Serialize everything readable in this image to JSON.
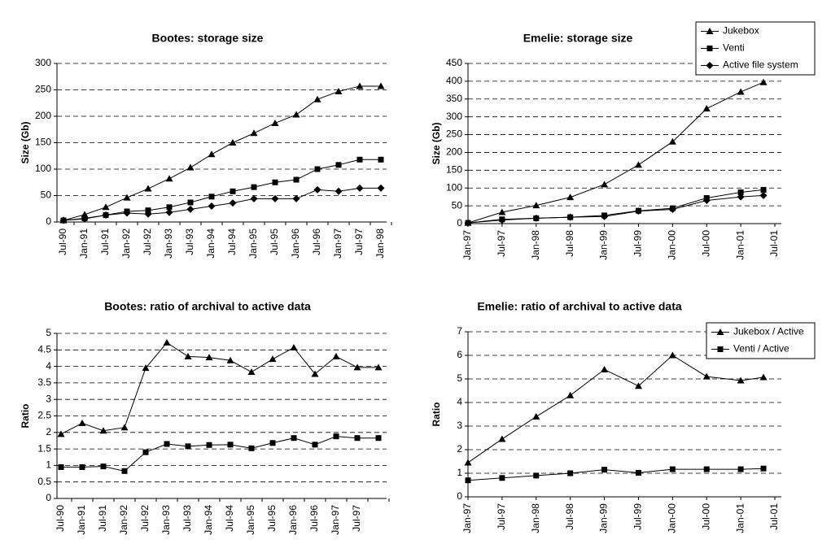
{
  "chart_data": [
    {
      "type": "line",
      "title": "Bootes: storage size",
      "ylabel": "Size (Gb)",
      "categories": [
        "Jul-90",
        "Jan-91",
        "Jul-91",
        "Jan-92",
        "Jul-92",
        "Jan-93",
        "Jul-93",
        "Jan-94",
        "Jul-94",
        "Jan-95",
        "Jul-95",
        "Jan-96",
        "Jul-96",
        "Jan-97",
        "Jul-97",
        "Jan-98"
      ],
      "series": [
        {
          "marker": "triangle",
          "color": "#000000",
          "values": [
            3,
            14,
            28,
            46,
            63,
            82,
            103,
            128,
            150,
            168,
            187,
            203,
            232,
            247,
            257,
            257
          ]
        },
        {
          "marker": "square",
          "color": "#000000",
          "values": [
            3,
            7,
            13,
            20,
            22,
            28,
            37,
            48,
            58,
            66,
            75,
            80,
            100,
            108,
            118,
            118
          ]
        },
        {
          "marker": "diamond",
          "color": "#000000",
          "values": [
            3,
            6,
            13,
            17,
            15,
            18,
            24,
            30,
            36,
            44,
            44,
            44,
            61,
            58,
            64,
            64
          ]
        }
      ],
      "ylim": [
        0,
        300
      ],
      "yticks": [
        0,
        50,
        100,
        150,
        200,
        250,
        300
      ],
      "grid": true
    },
    {
      "type": "line",
      "title": "Emelie: storage size",
      "ylabel": "Size (Gb)",
      "x": [
        0,
        6,
        12,
        18,
        24,
        30,
        36,
        42,
        48,
        52
      ],
      "xlim": [
        0,
        54
      ],
      "xticks": [
        {
          "value": 0,
          "label": "Jan-97"
        },
        {
          "value": 6,
          "label": "Jul-97"
        },
        {
          "value": 12,
          "label": "Jan-98"
        },
        {
          "value": 18,
          "label": "Jul-98"
        },
        {
          "value": 24,
          "label": "Jan-99"
        },
        {
          "value": 30,
          "label": "Jul-99"
        },
        {
          "value": 36,
          "label": "Jan-00"
        },
        {
          "value": 42,
          "label": "Jul-00"
        },
        {
          "value": 48,
          "label": "Jan-01"
        },
        {
          "value": 54,
          "label": "Jul-01"
        }
      ],
      "series": [
        {
          "name": "Jukebox",
          "marker": "triangle",
          "color": "#000000",
          "values": [
            2,
            32,
            51,
            74,
            110,
            165,
            230,
            323,
            370,
            397
          ]
        },
        {
          "name": "Venti",
          "marker": "square",
          "color": "#000000",
          "values": [
            2,
            12,
            15,
            18,
            23,
            36,
            43,
            72,
            88,
            95
          ]
        },
        {
          "name": "Active file system",
          "marker": "diamond",
          "color": "#000000",
          "values": [
            2,
            10,
            15,
            18,
            20,
            35,
            40,
            65,
            75,
            79
          ]
        }
      ],
      "ylim": [
        0,
        450
      ],
      "yticks": [
        0,
        50,
        100,
        150,
        200,
        250,
        300,
        350,
        400,
        450
      ],
      "grid": true,
      "legend": "upper right"
    },
    {
      "type": "line",
      "title": "Bootes: ratio of archival to active data",
      "ylabel": "Ratio",
      "categories": [
        "Jul-90",
        "Jan-91",
        "Jul-91",
        "Jan-92",
        "Jul-92",
        "Jan-93",
        "Jul-93",
        "Jan-94",
        "Jul-94",
        "Jan-95",
        "Jul-95",
        "Jan-96",
        "Jul-96",
        "Jan-97",
        "Jul-97",
        null
      ],
      "series": [
        {
          "marker": "triangle",
          "color": "#000000",
          "values": [
            1.95,
            2.28,
            2.05,
            2.15,
            3.95,
            4.72,
            4.3,
            4.27,
            4.18,
            3.83,
            4.22,
            4.57,
            3.77,
            4.3,
            3.97,
            3.97
          ]
        },
        {
          "marker": "square",
          "color": "#000000",
          "values": [
            0.95,
            0.95,
            0.97,
            0.83,
            1.4,
            1.65,
            1.58,
            1.62,
            1.63,
            1.52,
            1.68,
            1.83,
            1.63,
            1.88,
            1.83,
            1.83
          ]
        }
      ],
      "ylim": [
        0,
        5
      ],
      "yticks": [
        0,
        0.5,
        1,
        1.5,
        2,
        2.5,
        3,
        3.5,
        4,
        4.5,
        5
      ],
      "grid": true
    },
    {
      "type": "line",
      "title": "Emelie: ratio of archival to active data",
      "ylabel": "Ratio",
      "x": [
        0,
        6,
        12,
        18,
        24,
        30,
        36,
        42,
        48,
        52
      ],
      "xlim": [
        0,
        54
      ],
      "xticks": [
        {
          "value": 0,
          "label": "Jan-97"
        },
        {
          "value": 6,
          "label": "Jul-97"
        },
        {
          "value": 12,
          "label": "Jan-98"
        },
        {
          "value": 18,
          "label": "Jul-98"
        },
        {
          "value": 24,
          "label": "Jan-99"
        },
        {
          "value": 30,
          "label": "Jul-99"
        },
        {
          "value": 36,
          "label": "Jan-00"
        },
        {
          "value": 42,
          "label": "Jul-00"
        },
        {
          "value": 48,
          "label": "Jan-01"
        },
        {
          "value": 54,
          "label": "Jul-01"
        }
      ],
      "series": [
        {
          "name": "Jukebox / Active",
          "marker": "triangle",
          "color": "#000000",
          "values": [
            1.45,
            2.45,
            3.4,
            4.3,
            5.4,
            4.7,
            6.0,
            5.1,
            4.93,
            5.07
          ]
        },
        {
          "name": "Venti / Active",
          "marker": "square",
          "color": "#000000",
          "values": [
            0.7,
            0.8,
            0.9,
            1.0,
            1.15,
            1.02,
            1.17,
            1.17,
            1.17,
            1.2
          ]
        }
      ],
      "ylim": [
        0,
        7
      ],
      "yticks": [
        0,
        1,
        2,
        3,
        4,
        5,
        6,
        7
      ],
      "grid": true,
      "legend": "upper right"
    }
  ]
}
